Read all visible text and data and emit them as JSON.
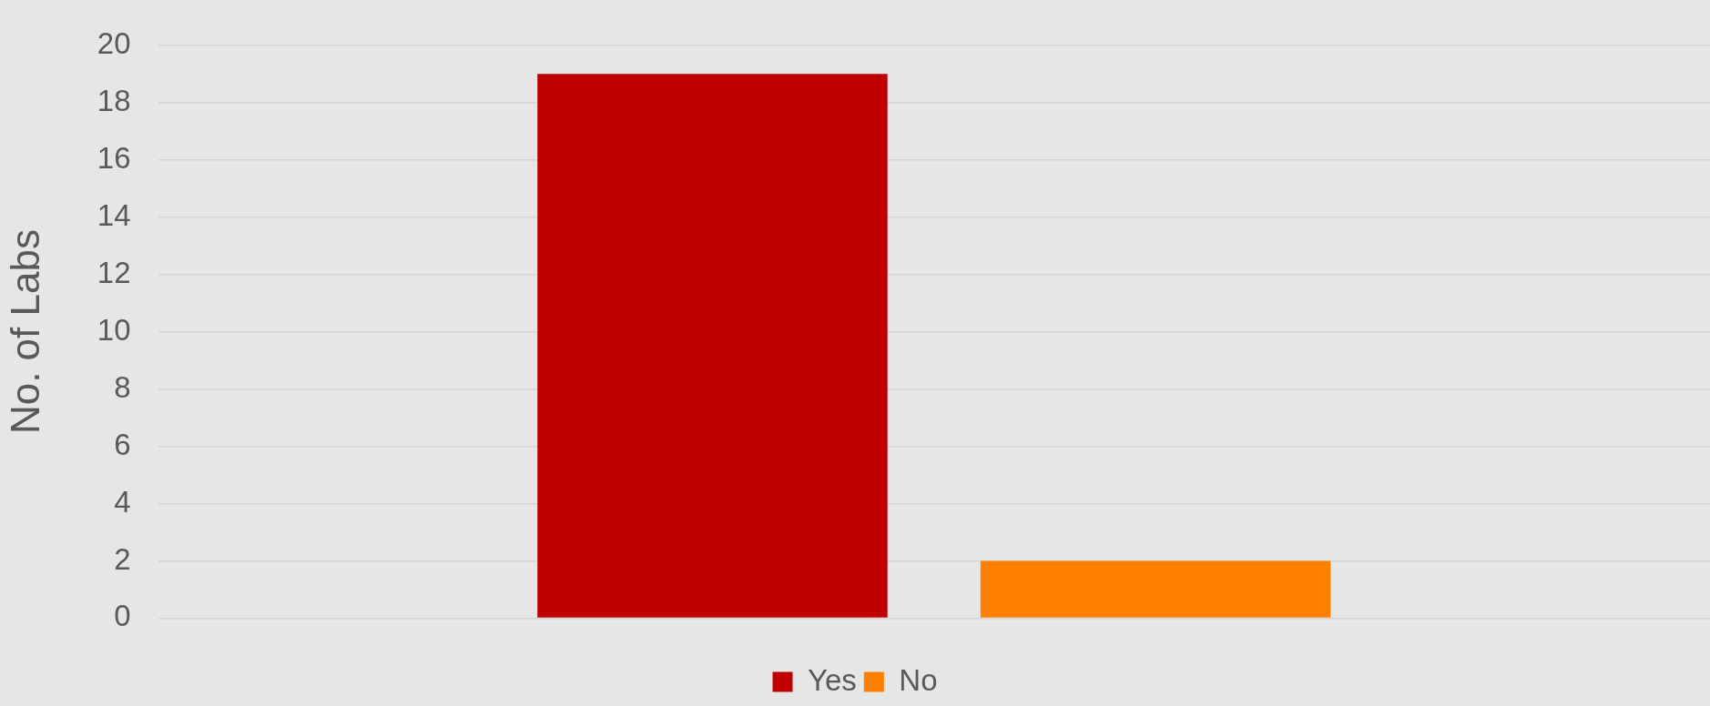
{
  "chart_data": {
    "type": "bar",
    "ylabel": "No. of Labs",
    "categories": [
      null
    ],
    "series": [
      {
        "name": "Yes",
        "color": "#c00000",
        "values": [
          19
        ]
      },
      {
        "name": "No",
        "color": "#ff8000",
        "values": [
          2
        ]
      }
    ],
    "ylim": [
      0,
      20
    ],
    "yticks": [
      0,
      2,
      4,
      6,
      8,
      10,
      12,
      14,
      16,
      18,
      20
    ],
    "grid": "y",
    "legend": "bottom"
  }
}
